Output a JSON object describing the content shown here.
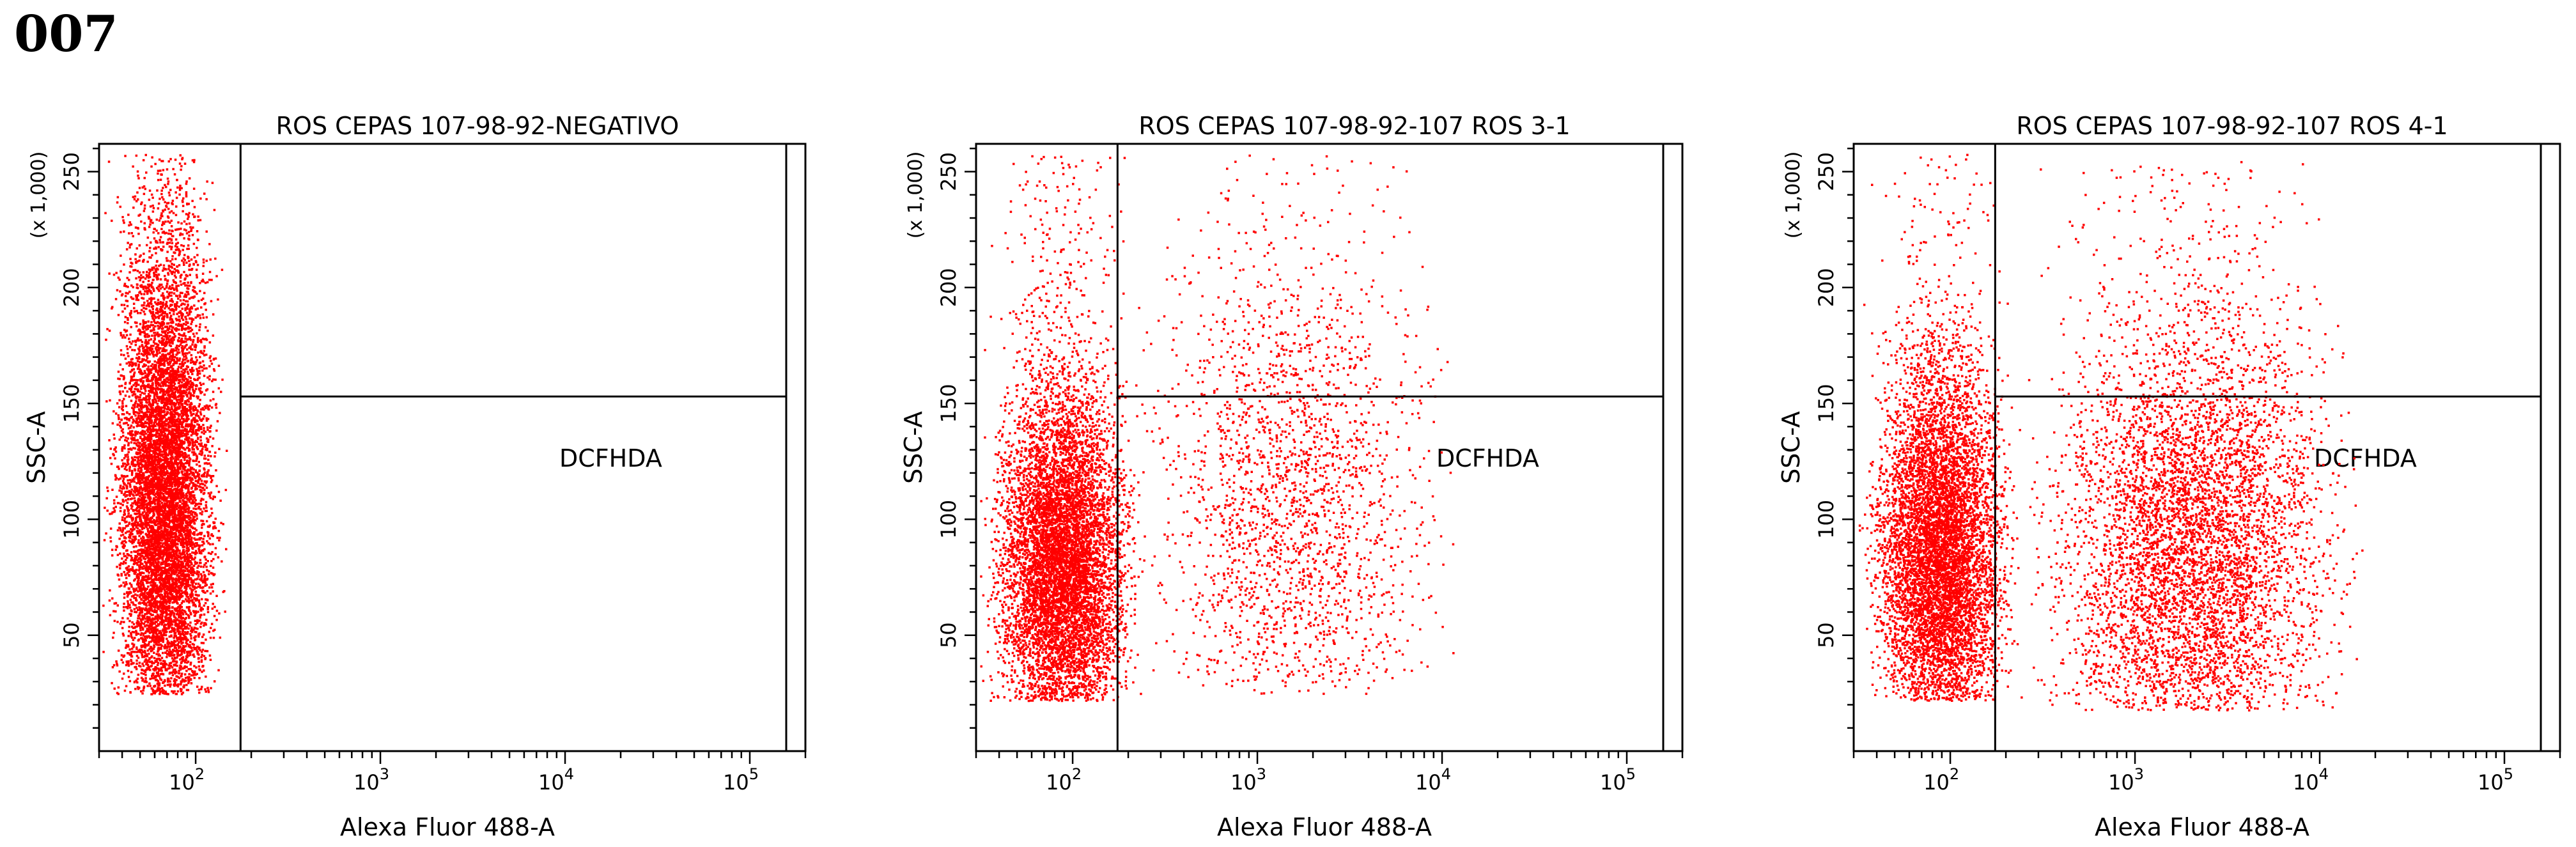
{
  "figure_label": "007",
  "chart_data": [
    {
      "type": "scatter",
      "title": "ROS CEPAS 107-98-92-NEGATIVO",
      "xlabel": "Alexa Fluor 488-A",
      "ylabel": "SSC-A",
      "y_multiplier_label": "(x 1,000)",
      "x_scale": "log",
      "xlim": [
        30,
        200000
      ],
      "ylim": [
        0,
        262
      ],
      "x_ticks": [
        "10^2",
        "10^3",
        "10^4",
        "10^5"
      ],
      "y_ticks": [
        50,
        100,
        150,
        200,
        250
      ],
      "gate": {
        "x_threshold": 175,
        "y_threshold": 153
      },
      "quadrant_label": "DCFHDA",
      "point_color": "#ff0000",
      "populations": [
        {
          "name": "",
          "count": 9000,
          "x_range": [
            30,
            150
          ],
          "y_mean": 110,
          "y_sd": 55,
          "y_range": [
            25,
            258
          ]
        }
      ]
    },
    {
      "type": "scatter",
      "title": "ROS CEPAS 107-98-92-107 ROS 3-1",
      "xlabel": "Alexa Fluor 488-A",
      "ylabel": "SSC-A",
      "y_multiplier_label": "(x 1,000)",
      "x_scale": "log",
      "xlim": [
        30,
        200000
      ],
      "ylim": [
        0,
        262
      ],
      "x_ticks": [
        "10^2",
        "10^3",
        "10^4",
        "10^5"
      ],
      "y_ticks": [
        50,
        100,
        150,
        200,
        250
      ],
      "gate": {
        "x_threshold": 175,
        "y_threshold": 153
      },
      "quadrant_label": "DCFHDA",
      "point_color": "#ff0000",
      "populations": [
        {
          "name": "",
          "count": 7500,
          "x_range": [
            30,
            250
          ],
          "y_mean": 80,
          "y_sd": 38,
          "y_range": [
            22,
            258
          ]
        },
        {
          "name": "",
          "count": 2100,
          "x_range": [
            150,
            15000
          ],
          "y_mean": 110,
          "y_sd": 55,
          "y_range": [
            25,
            258
          ]
        }
      ]
    },
    {
      "type": "scatter",
      "title": "ROS CEPAS 107-98-92-107 ROS 4-1",
      "xlabel": "Alexa Fluor 488-A",
      "ylabel": "SSC-A",
      "y_multiplier_label": "(x 1,000)",
      "x_scale": "log",
      "xlim": [
        30,
        200000
      ],
      "ylim": [
        0,
        262
      ],
      "x_ticks": [
        "10^2",
        "10^3",
        "10^4",
        "10^5"
      ],
      "y_ticks": [
        50,
        100,
        150,
        200,
        250
      ],
      "gate": {
        "x_threshold": 175,
        "y_threshold": 153
      },
      "quadrant_label": "DCFHDA",
      "point_color": "#ff0000",
      "populations": [
        {
          "name": "",
          "count": 7000,
          "x_range": [
            30,
            250
          ],
          "y_mean": 85,
          "y_sd": 40,
          "y_range": [
            22,
            258
          ]
        },
        {
          "name": "",
          "count": 5500,
          "x_range": [
            200,
            20000
          ],
          "y_mean": 85,
          "y_sd": 50,
          "y_range": [
            18,
            258
          ]
        }
      ]
    }
  ]
}
